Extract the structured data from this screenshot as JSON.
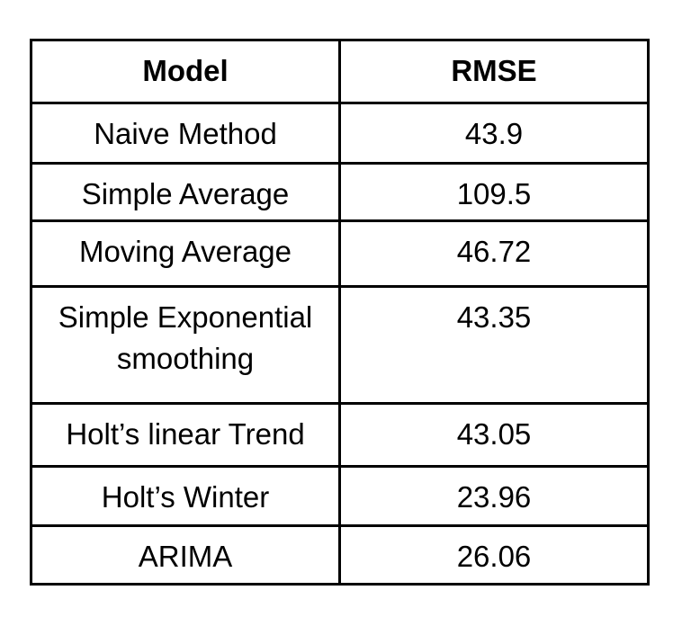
{
  "colors": {
    "background": "#ffffff",
    "border": "#000000",
    "text": "#000000"
  },
  "table": {
    "columns": {
      "model": "Model",
      "rmse": "RMSE"
    },
    "rows": [
      {
        "model": "Naive Method",
        "rmse": "43.9"
      },
      {
        "model": "Simple Average",
        "rmse": "109.5"
      },
      {
        "model": "Moving Average",
        "rmse": "46.72"
      },
      {
        "model": "Simple Exponential smoothing",
        "rmse": "43.35"
      },
      {
        "model": "Holt’s linear Trend",
        "rmse": "43.05"
      },
      {
        "model": "Holt’s Winter",
        "rmse": "23.96"
      },
      {
        "model": "ARIMA",
        "rmse": "26.06"
      }
    ]
  },
  "chart_data": {
    "type": "table",
    "title": "",
    "columns": [
      "Model",
      "RMSE"
    ],
    "rows": [
      [
        "Naive Method",
        43.9
      ],
      [
        "Simple Average",
        109.5
      ],
      [
        "Moving Average",
        46.72
      ],
      [
        "Simple Exponential smoothing",
        43.35
      ],
      [
        "Holt’s linear Trend",
        43.05
      ],
      [
        "Holt’s Winter",
        23.96
      ],
      [
        "ARIMA",
        26.06
      ]
    ]
  }
}
